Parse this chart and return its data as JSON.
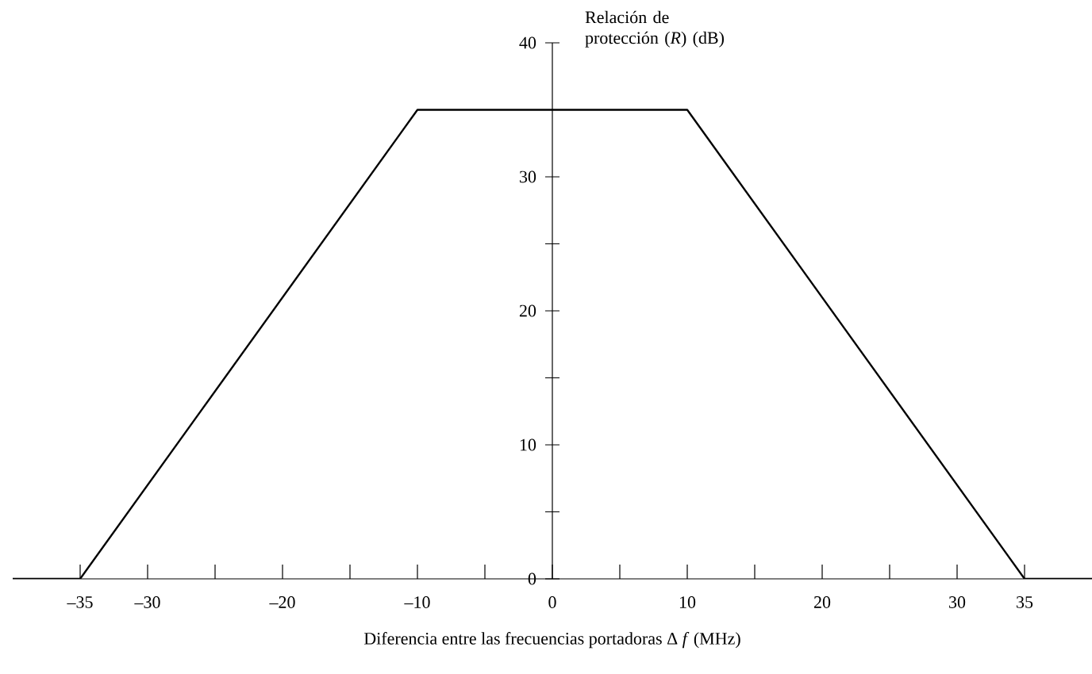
{
  "chart_data": {
    "type": "line",
    "xlabel": "Diferencia entre las frecuencias portadoras Δ *f* (MHz)",
    "ylabel": "Relación de protección (*R*) (dB)",
    "series": [
      {
        "color": "#000000",
        "x": [
          -40,
          -35,
          -10,
          10,
          35,
          40
        ],
        "values": [
          0,
          0,
          35,
          35,
          0,
          0
        ]
      }
    ],
    "xlim": [
      -40,
      40
    ],
    "ylim": [
      0,
      40
    ],
    "xticks": [
      {
        "value": -35,
        "label": "–35"
      },
      {
        "value": -30,
        "label": "–30"
      },
      {
        "value": -25,
        "label": null
      },
      {
        "value": -20,
        "label": "–20"
      },
      {
        "value": -15,
        "label": null
      },
      {
        "value": -10,
        "label": "–10"
      },
      {
        "value": -5,
        "label": null
      },
      0,
      {
        "value": 5,
        "label": null
      },
      10,
      {
        "value": 15,
        "label": null
      },
      20,
      {
        "value": 25,
        "label": null
      },
      30,
      35
    ],
    "yticks": [
      0,
      {
        "value": 5,
        "label": null
      },
      10,
      {
        "value": 15,
        "label": null
      },
      20,
      {
        "value": 25,
        "label": null
      },
      30,
      {
        "value": 35,
        "label": null
      },
      40
    ],
    "grid": false,
    "marker": "none",
    "line_style": "solid"
  }
}
